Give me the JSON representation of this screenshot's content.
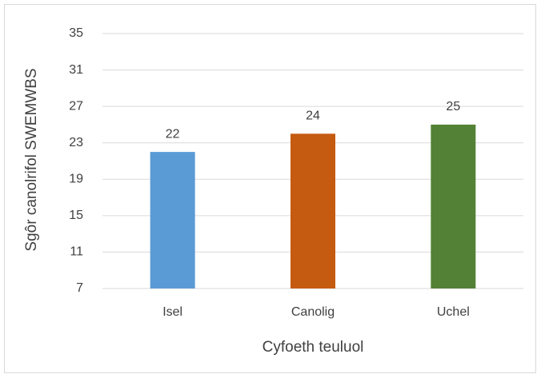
{
  "chart_data": {
    "type": "bar",
    "categories": [
      "Isel",
      "Canolig",
      "Uchel"
    ],
    "values": [
      22,
      24,
      25
    ],
    "colors": [
      "#5b9bd5",
      "#c55a11",
      "#538135"
    ],
    "xlabel": "Cyfoeth teuluol",
    "ylabel": "Sgôr canolrifol SWEMWBS",
    "ylim": [
      7,
      35
    ],
    "yticks": [
      7,
      11,
      15,
      19,
      23,
      27,
      31,
      35
    ],
    "grid": true,
    "data_labels": true
  }
}
